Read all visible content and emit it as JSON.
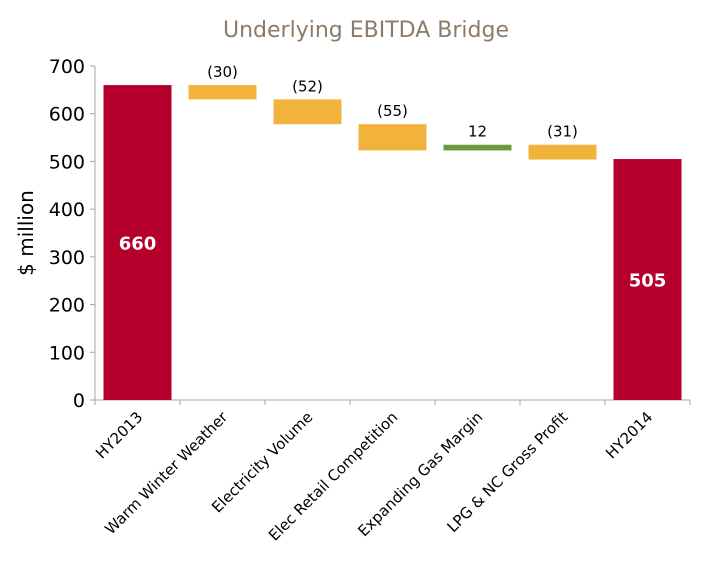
{
  "chart_data": {
    "type": "bar",
    "subtype": "waterfall",
    "title": "Underlying EBITDA Bridge",
    "xlabel": "",
    "ylabel": "$ million",
    "ylim": [
      0,
      700
    ],
    "yticks": [
      0,
      100,
      200,
      300,
      400,
      500,
      600,
      700
    ],
    "grid": false,
    "legend": "none",
    "categories": [
      "HY2013",
      "Warm Winter Weather",
      "Electricity Volume",
      "Elec Retail Competition",
      "Expanding Gas Margin",
      "LPG & NC Gross Profit",
      "HY2014"
    ],
    "values": [
      660,
      -30,
      -52,
      -55,
      12,
      -31,
      505
    ],
    "kinds": [
      "total",
      "delta",
      "delta",
      "delta",
      "delta",
      "delta",
      "total"
    ],
    "data_labels": [
      "660",
      "(30)",
      "(52)",
      "(55)",
      "12",
      "(31)",
      "505"
    ],
    "colors": {
      "total": "#b5002b",
      "decrease": "#f2b33d",
      "increase": "#6a9a3f",
      "title": "#8c7b6b",
      "axis": "#a6a6a6"
    }
  }
}
